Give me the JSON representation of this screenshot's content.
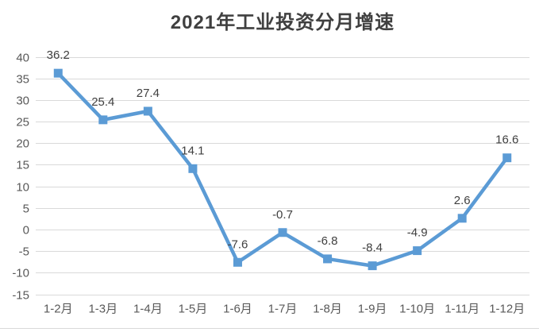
{
  "chart_data": {
    "type": "line",
    "title": "2021年工业投资分月增速",
    "categories": [
      "1-2月",
      "1-3月",
      "1-4月",
      "1-5月",
      "1-6月",
      "1-7月",
      "1-8月",
      "1-9月",
      "1-10月",
      "1-11月",
      "1-12月"
    ],
    "values": [
      36.2,
      25.4,
      27.4,
      14.1,
      -7.6,
      -0.7,
      -6.8,
      -8.4,
      -4.9,
      2.6,
      16.6
    ],
    "xlabel": "",
    "ylabel": "",
    "ylim": [
      -15,
      40
    ],
    "ytick_step": 5,
    "grid": true,
    "legend": "none",
    "data_labels": true,
    "marker": "square",
    "colors": {
      "line": "#5B9BD5",
      "marker": "#5B9BD5",
      "gridline": "#D9D9D9",
      "axis_text": "#595959",
      "data_label_text": "#404040",
      "title_text": "#404040",
      "background": "#FFFFFF",
      "bottom_rule": "#D9D9D9"
    }
  }
}
